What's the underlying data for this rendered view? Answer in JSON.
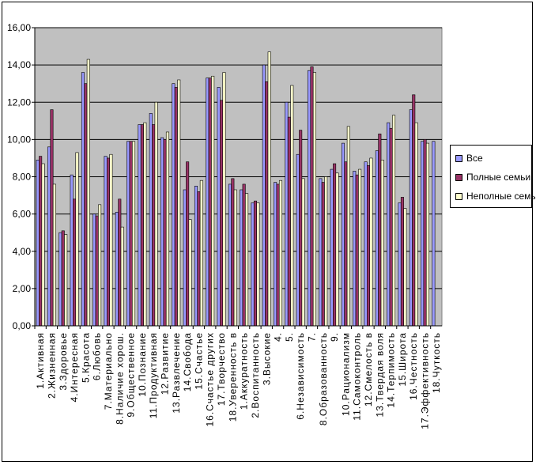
{
  "chart_data": {
    "type": "bar",
    "title": "",
    "xlabel": "",
    "ylabel": "",
    "ylim": [
      0,
      16
    ],
    "yticks": [
      "0,00",
      "2,00",
      "4,00",
      "6,00",
      "8,00",
      "10,00",
      "12,00",
      "14,00",
      "16,00"
    ],
    "grid": true,
    "legend_position": "right",
    "plot_background": "#c0c0c0",
    "categories": [
      "1.Активная",
      "2.Жизненная",
      "3.Здоровье",
      "4.Интересная",
      "5.Красота",
      "6.Любовь",
      "7.Материально",
      "8.Наличие хорош.",
      "9.Общественное",
      "10.Познание",
      "11.Продуктивная",
      "12.Развитие",
      "13.Развлечение",
      "14.Свобода",
      "15.Счастье",
      "16.Счастье других",
      "17.Творчество",
      "18.Уверенность в",
      "1.Аккуратность",
      "2.Воспитанность",
      "3.Высокие",
      "4.",
      "5.",
      "6.Независимость",
      "7.",
      "8.Образованность",
      "9.",
      "10.Рационализм",
      "11.Самоконтроль",
      "12.Смелость в",
      "13.Твердая воля",
      "14.Терпимость",
      "15.Широта",
      "16.Честность",
      "17.Эффективность",
      "18.Чуткость"
    ],
    "series": [
      {
        "name": "Все",
        "color": "#9999ff",
        "values": [
          8.9,
          9.6,
          5.0,
          8.1,
          13.6,
          6.0,
          9.1,
          6.1,
          9.9,
          10.8,
          11.4,
          10.1,
          13.0,
          7.3,
          7.5,
          13.3,
          12.8,
          7.6,
          7.3,
          6.6,
          14.0,
          7.7,
          12.0,
          9.2,
          13.7,
          7.9,
          8.4,
          9.8,
          8.3,
          8.8,
          9.4,
          10.9,
          6.6,
          11.6,
          9.9,
          9.9
        ]
      },
      {
        "name": "Полные семьи",
        "color": "#993366",
        "values": [
          9.1,
          11.6,
          5.1,
          6.8,
          13.0,
          5.9,
          9.0,
          6.8,
          9.9,
          10.8,
          10.8,
          10.0,
          12.8,
          8.8,
          7.2,
          13.3,
          12.1,
          7.9,
          7.6,
          6.7,
          13.1,
          7.6,
          11.2,
          10.5,
          13.9,
          7.7,
          8.7,
          8.8,
          8.1,
          8.6,
          10.3,
          10.6,
          6.9,
          12.4,
          10.0,
          0
        ]
      },
      {
        "name": "Неполные семьи",
        "color": "#ffffcc",
        "values": [
          8.7,
          7.6,
          4.9,
          9.3,
          14.3,
          6.5,
          9.2,
          5.3,
          9.9,
          10.9,
          12.0,
          10.4,
          13.2,
          5.7,
          7.8,
          13.4,
          13.6,
          7.3,
          7.1,
          6.6,
          14.7,
          7.8,
          12.9,
          7.9,
          13.6,
          8.0,
          8.2,
          10.7,
          8.4,
          9.0,
          8.9,
          11.3,
          6.3,
          10.9,
          9.8,
          0
        ]
      }
    ]
  }
}
